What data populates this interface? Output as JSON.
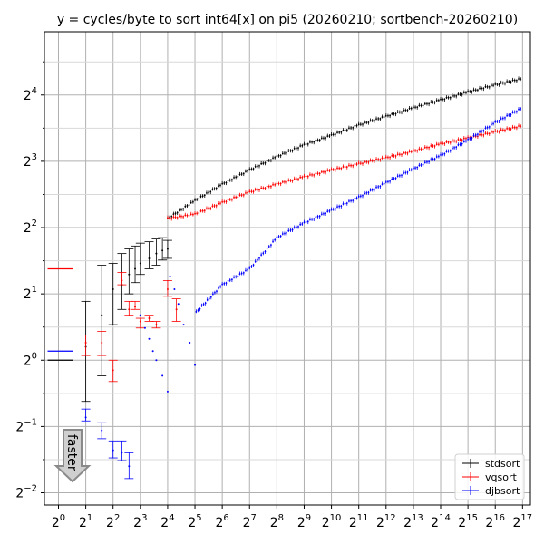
{
  "chart_data": {
    "type": "scatter",
    "title": "y = cycles/byte to sort int64[x] on pi5 (20260210; sortbench-20260210)",
    "xscale": "log2",
    "yscale": "log2",
    "xlim": [
      0.7,
      160000
    ],
    "ylim": [
      0.22,
      31
    ],
    "grid": true,
    "legend_position": "lower-right",
    "x_ticks": [
      {
        "base": "2",
        "exp": "0"
      },
      {
        "base": "2",
        "exp": "1"
      },
      {
        "base": "2",
        "exp": "2"
      },
      {
        "base": "2",
        "exp": "3"
      },
      {
        "base": "2",
        "exp": "4"
      },
      {
        "base": "2",
        "exp": "5"
      },
      {
        "base": "2",
        "exp": "6"
      },
      {
        "base": "2",
        "exp": "7"
      },
      {
        "base": "2",
        "exp": "8"
      },
      {
        "base": "2",
        "exp": "9"
      },
      {
        "base": "2",
        "exp": "10"
      },
      {
        "base": "2",
        "exp": "11"
      },
      {
        "base": "2",
        "exp": "12"
      },
      {
        "base": "2",
        "exp": "13"
      },
      {
        "base": "2",
        "exp": "14"
      },
      {
        "base": "2",
        "exp": "15"
      },
      {
        "base": "2",
        "exp": "16"
      },
      {
        "base": "2",
        "exp": "17"
      }
    ],
    "y_ticks": [
      {
        "base": "2",
        "exp": "−2"
      },
      {
        "base": "2",
        "exp": "−1"
      },
      {
        "base": "2",
        "exp": "0"
      },
      {
        "base": "2",
        "exp": "1"
      },
      {
        "base": "2",
        "exp": "2"
      },
      {
        "base": "2",
        "exp": "3"
      },
      {
        "base": "2",
        "exp": "4"
      }
    ],
    "annotation": {
      "text": "faster",
      "arrow_direction": "down"
    },
    "series": [
      {
        "name": "stdsort",
        "color": "#000000",
        "points": [
          {
            "x": 1,
            "y": 1.0,
            "lo": 1.0,
            "hi": 1.0
          },
          {
            "x": 2,
            "y": 1.15,
            "lo": 0.65,
            "hi": 1.85
          },
          {
            "x": 3,
            "y": 1.6,
            "lo": 0.85,
            "hi": 2.7
          },
          {
            "x": 4,
            "y": 2.1,
            "lo": 1.45,
            "hi": 2.75
          },
          {
            "x": 5,
            "y": 2.2,
            "lo": 1.7,
            "hi": 3.05
          },
          {
            "x": 6,
            "y": 2.45,
            "lo": 2.0,
            "hi": 3.2
          },
          {
            "x": 7,
            "y": 2.6,
            "lo": 2.25,
            "hi": 3.3
          },
          {
            "x": 8,
            "y": 2.75,
            "lo": 2.45,
            "hi": 3.4
          },
          {
            "x": 10,
            "y": 2.9,
            "lo": 2.6,
            "hi": 3.45
          },
          {
            "x": 12,
            "y": 3.05,
            "lo": 2.7,
            "hi": 3.55
          },
          {
            "x": 14,
            "y": 3.15,
            "lo": 2.85,
            "hi": 3.6
          },
          {
            "x": 16,
            "y": 3.2,
            "lo": 2.9,
            "hi": 3.5
          }
        ],
        "curve": [
          {
            "x": 16,
            "y": 4.4
          },
          {
            "x": 32,
            "y": 5.3
          },
          {
            "x": 64,
            "y": 6.3
          },
          {
            "x": 128,
            "y": 7.3
          },
          {
            "x": 256,
            "y": 8.4
          },
          {
            "x": 512,
            "y": 9.5
          },
          {
            "x": 1024,
            "y": 10.5
          },
          {
            "x": 2048,
            "y": 11.7
          },
          {
            "x": 4096,
            "y": 12.8
          },
          {
            "x": 8192,
            "y": 14.0
          },
          {
            "x": 16384,
            "y": 15.2
          },
          {
            "x": 32768,
            "y": 16.5
          },
          {
            "x": 65536,
            "y": 17.8
          },
          {
            "x": 131072,
            "y": 19.0
          }
        ]
      },
      {
        "name": "vqsort",
        "color": "#ff0000",
        "points": [
          {
            "x": 1,
            "y": 2.6,
            "lo": 2.6,
            "hi": 2.6
          },
          {
            "x": 2,
            "y": 1.2,
            "lo": 1.05,
            "hi": 1.3
          },
          {
            "x": 3,
            "y": 1.2,
            "lo": 1.05,
            "hi": 1.35
          },
          {
            "x": 4,
            "y": 0.9,
            "lo": 0.8,
            "hi": 1.0
          },
          {
            "x": 5,
            "y": 2.3,
            "lo": 2.2,
            "hi": 2.5
          },
          {
            "x": 6,
            "y": 1.7,
            "lo": 1.6,
            "hi": 1.85
          },
          {
            "x": 7,
            "y": 1.75,
            "lo": 1.7,
            "hi": 1.85
          },
          {
            "x": 8,
            "y": 1.5,
            "lo": 1.4,
            "hi": 1.55
          },
          {
            "x": 10,
            "y": 1.55,
            "lo": 1.5,
            "hi": 1.6
          },
          {
            "x": 12,
            "y": 1.45,
            "lo": 1.4,
            "hi": 1.5
          },
          {
            "x": 16,
            "y": 2.1,
            "lo": 1.95,
            "hi": 2.3
          },
          {
            "x": 20,
            "y": 1.7,
            "lo": 1.5,
            "hi": 1.9
          }
        ],
        "curve": [
          {
            "x": 16,
            "y": 4.4
          },
          {
            "x": 32,
            "y": 4.6
          },
          {
            "x": 64,
            "y": 5.2
          },
          {
            "x": 128,
            "y": 5.8
          },
          {
            "x": 256,
            "y": 6.3
          },
          {
            "x": 512,
            "y": 6.8
          },
          {
            "x": 1024,
            "y": 7.3
          },
          {
            "x": 2048,
            "y": 7.8
          },
          {
            "x": 4096,
            "y": 8.3
          },
          {
            "x": 8192,
            "y": 8.9
          },
          {
            "x": 16384,
            "y": 9.6
          },
          {
            "x": 32768,
            "y": 10.2
          },
          {
            "x": 65536,
            "y": 10.9
          },
          {
            "x": 131072,
            "y": 11.6
          }
        ]
      },
      {
        "name": "djbsort",
        "color": "#0000ff",
        "points": [
          {
            "x": 1,
            "y": 1.1,
            "lo": 1.1,
            "hi": 1.1
          },
          {
            "x": 2,
            "y": 0.55,
            "lo": 0.53,
            "hi": 0.6
          },
          {
            "x": 3,
            "y": 0.48,
            "lo": 0.44,
            "hi": 0.52
          },
          {
            "x": 4,
            "y": 0.39,
            "lo": 0.36,
            "hi": 0.43
          },
          {
            "x": 5,
            "y": 0.38,
            "lo": 0.35,
            "hi": 0.43
          },
          {
            "x": 6,
            "y": 0.33,
            "lo": 0.29,
            "hi": 0.38
          },
          {
            "x": 8,
            "y": 1.6,
            "lo": 1.6,
            "hi": 1.6
          },
          {
            "x": 9,
            "y": 1.4,
            "lo": 1.4,
            "hi": 1.4
          },
          {
            "x": 10,
            "y": 1.25,
            "lo": 1.25,
            "hi": 1.25
          },
          {
            "x": 11,
            "y": 1.1,
            "lo": 1.1,
            "hi": 1.1
          },
          {
            "x": 12,
            "y": 1.0,
            "lo": 1.0,
            "hi": 1.0
          },
          {
            "x": 14,
            "y": 0.85,
            "lo": 0.85,
            "hi": 0.85
          },
          {
            "x": 16,
            "y": 0.72,
            "lo": 0.72,
            "hi": 0.72
          },
          {
            "x": 17,
            "y": 2.4,
            "lo": 2.4,
            "hi": 2.4
          },
          {
            "x": 19,
            "y": 2.1,
            "lo": 2.1,
            "hi": 2.1
          },
          {
            "x": 21,
            "y": 1.8,
            "lo": 1.8,
            "hi": 1.8
          },
          {
            "x": 24,
            "y": 1.45,
            "lo": 1.45,
            "hi": 1.45
          },
          {
            "x": 28,
            "y": 1.2,
            "lo": 1.2,
            "hi": 1.2
          },
          {
            "x": 32,
            "y": 0.95,
            "lo": 0.95,
            "hi": 0.95
          }
        ],
        "curve": [
          {
            "x": 33,
            "y": 1.65
          },
          {
            "x": 64,
            "y": 2.2
          },
          {
            "x": 128,
            "y": 2.6
          },
          {
            "x": 256,
            "y": 3.6
          },
          {
            "x": 512,
            "y": 4.2
          },
          {
            "x": 1024,
            "y": 4.8
          },
          {
            "x": 2048,
            "y": 5.5
          },
          {
            "x": 4096,
            "y": 6.4
          },
          {
            "x": 8192,
            "y": 7.4
          },
          {
            "x": 16384,
            "y": 8.5
          },
          {
            "x": 32768,
            "y": 10.0
          },
          {
            "x": 65536,
            "y": 12.0
          },
          {
            "x": 131072,
            "y": 14.0
          }
        ]
      }
    ]
  }
}
